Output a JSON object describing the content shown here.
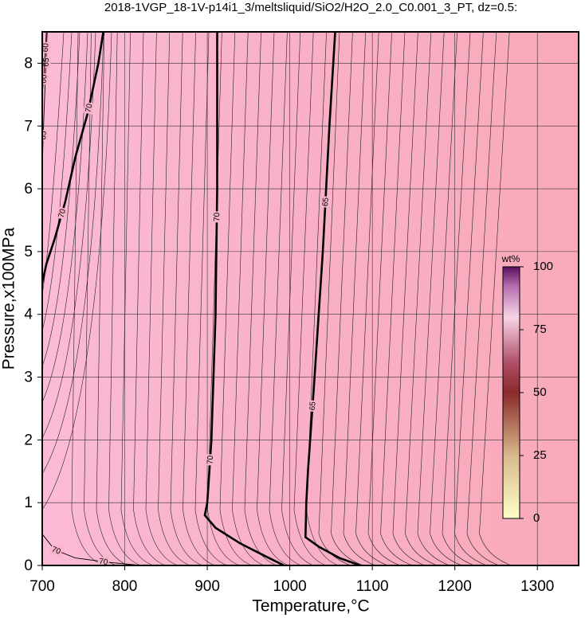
{
  "chart_data": {
    "type": "contour",
    "title": "2018-1VGP_18-1V-p14i1_3/meltsliquid/SiO2/H2O_2.0_C0.001_3_PT, dz=0.5:",
    "x_label": "Temperature,°C",
    "y_label": "Pressure,x100MPa",
    "xlim": [
      700,
      1350
    ],
    "ylim": [
      0,
      8.5
    ],
    "xticks": [
      700,
      800,
      900,
      1000,
      1100,
      1200,
      1300
    ],
    "yticks": [
      0,
      1,
      2,
      3,
      4,
      5,
      6,
      7,
      8
    ],
    "grid": true,
    "contours": [
      {
        "level": 70,
        "bold": true,
        "x": [
          912,
          912,
          910,
          905,
          900,
          897,
          910,
          940,
          970,
          993
        ],
        "y": [
          8.5,
          6,
          4,
          2,
          1,
          0.8,
          0.6,
          0.35,
          0.15,
          0
        ]
      },
      {
        "level": 65,
        "bold": true,
        "x": [
          1055,
          1048,
          1040,
          1030,
          1022,
          1020,
          1019,
          1035,
          1060,
          1085
        ],
        "y": [
          8.5,
          7,
          5,
          3,
          1.5,
          1,
          0.45,
          0.3,
          0.12,
          0
        ]
      },
      {
        "level": 70,
        "bold": true,
        "x": [
          774,
          768,
          755,
          740,
          728,
          715,
          705,
          700
        ],
        "y": [
          8.5,
          8,
          7.2,
          6.5,
          5.8,
          5.2,
          4.8,
          4.5
        ]
      },
      {
        "level": 65,
        "bold": false,
        "x": [
          706,
          703,
          701,
          700
        ],
        "y": [
          8.5,
          7.5,
          6.8,
          6.3
        ]
      },
      {
        "level": 60,
        "bold": false,
        "x": [
          705,
          702,
          700
        ],
        "y": [
          8.5,
          7.8,
          7.5
        ]
      },
      {
        "level": 70,
        "bold": false,
        "x": [
          700,
          715,
          740,
          780,
          820
        ],
        "y": [
          0.5,
          0.25,
          0.12,
          0.05,
          0
        ]
      }
    ],
    "colorbar": {
      "label": "wt%",
      "lim": [
        0,
        100
      ],
      "ticks": [
        0,
        25,
        50,
        75,
        100
      ]
    }
  }
}
